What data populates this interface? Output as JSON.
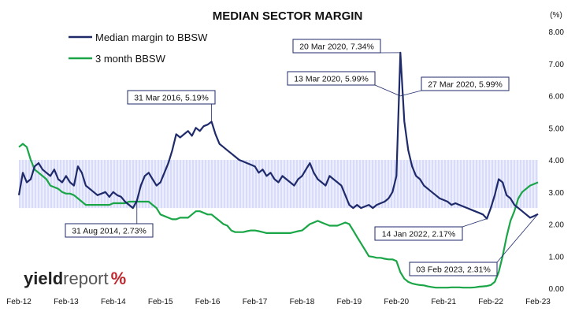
{
  "chart_data": {
    "type": "line",
    "title": "MEDIAN SECTOR MARGIN",
    "y_unit_label": "(%)",
    "ylim": [
      0,
      8
    ],
    "y_ticks": [
      "0.00",
      "1.00",
      "2.00",
      "3.00",
      "4.00",
      "5.00",
      "6.00",
      "7.00",
      "8.00"
    ],
    "x_ticks": [
      "Feb-12",
      "Feb-13",
      "Feb-14",
      "Feb-15",
      "Feb-16",
      "Feb-17",
      "Feb-18",
      "Feb-19",
      "Feb-20",
      "Feb-21",
      "Feb-22",
      "Feb-23"
    ],
    "x_range": [
      "2012-02",
      "2023-02"
    ],
    "grid": false,
    "legend_position": "top-left",
    "shaded_band": {
      "y_from": 2.5,
      "y_to": 4.0,
      "x_from": "2012-02",
      "x_to": "2023-02"
    },
    "series": [
      {
        "name": "Median margin to BBSW",
        "color": "#1f2a6b",
        "points": [
          [
            "2012-02",
            2.9
          ],
          [
            "2012-03",
            3.6
          ],
          [
            "2012-04",
            3.3
          ],
          [
            "2012-05",
            3.4
          ],
          [
            "2012-06",
            3.8
          ],
          [
            "2012-07",
            3.9
          ],
          [
            "2012-08",
            3.7
          ],
          [
            "2012-09",
            3.6
          ],
          [
            "2012-10",
            3.5
          ],
          [
            "2012-11",
            3.7
          ],
          [
            "2012-12",
            3.4
          ],
          [
            "2013-01",
            3.3
          ],
          [
            "2013-02",
            3.5
          ],
          [
            "2013-03",
            3.3
          ],
          [
            "2013-04",
            3.2
          ],
          [
            "2013-05",
            3.8
          ],
          [
            "2013-06",
            3.6
          ],
          [
            "2013-07",
            3.2
          ],
          [
            "2013-08",
            3.1
          ],
          [
            "2013-09",
            3.0
          ],
          [
            "2013-10",
            2.9
          ],
          [
            "2013-11",
            2.95
          ],
          [
            "2013-12",
            3.0
          ],
          [
            "2014-01",
            2.85
          ],
          [
            "2014-02",
            3.0
          ],
          [
            "2014-03",
            2.9
          ],
          [
            "2014-04",
            2.85
          ],
          [
            "2014-05",
            2.7
          ],
          [
            "2014-06",
            2.6
          ],
          [
            "2014-07",
            2.5
          ],
          [
            "2014-08",
            2.73
          ],
          [
            "2014-09",
            3.2
          ],
          [
            "2014-10",
            3.5
          ],
          [
            "2014-11",
            3.6
          ],
          [
            "2014-12",
            3.4
          ],
          [
            "2015-01",
            3.2
          ],
          [
            "2015-02",
            3.3
          ],
          [
            "2015-03",
            3.6
          ],
          [
            "2015-04",
            3.9
          ],
          [
            "2015-05",
            4.3
          ],
          [
            "2015-06",
            4.8
          ],
          [
            "2015-07",
            4.7
          ],
          [
            "2015-08",
            4.8
          ],
          [
            "2015-09",
            4.9
          ],
          [
            "2015-10",
            4.75
          ],
          [
            "2015-11",
            5.0
          ],
          [
            "2015-12",
            4.9
          ],
          [
            "2016-01",
            5.05
          ],
          [
            "2016-02",
            5.1
          ],
          [
            "2016-03",
            5.19
          ],
          [
            "2016-04",
            4.8
          ],
          [
            "2016-05",
            4.5
          ],
          [
            "2016-06",
            4.4
          ],
          [
            "2016-07",
            4.3
          ],
          [
            "2016-08",
            4.2
          ],
          [
            "2016-09",
            4.1
          ],
          [
            "2016-10",
            4.0
          ],
          [
            "2016-11",
            3.95
          ],
          [
            "2016-12",
            3.9
          ],
          [
            "2017-01",
            3.85
          ],
          [
            "2017-02",
            3.8
          ],
          [
            "2017-03",
            3.6
          ],
          [
            "2017-04",
            3.7
          ],
          [
            "2017-05",
            3.5
          ],
          [
            "2017-06",
            3.6
          ],
          [
            "2017-07",
            3.4
          ],
          [
            "2017-08",
            3.3
          ],
          [
            "2017-09",
            3.5
          ],
          [
            "2017-10",
            3.4
          ],
          [
            "2017-11",
            3.3
          ],
          [
            "2017-12",
            3.2
          ],
          [
            "2018-01",
            3.4
          ],
          [
            "2018-02",
            3.5
          ],
          [
            "2018-03",
            3.7
          ],
          [
            "2018-04",
            3.9
          ],
          [
            "2018-05",
            3.6
          ],
          [
            "2018-06",
            3.4
          ],
          [
            "2018-07",
            3.3
          ],
          [
            "2018-08",
            3.2
          ],
          [
            "2018-09",
            3.5
          ],
          [
            "2018-10",
            3.4
          ],
          [
            "2018-11",
            3.3
          ],
          [
            "2018-12",
            3.2
          ],
          [
            "2019-01",
            2.9
          ],
          [
            "2019-02",
            2.6
          ],
          [
            "2019-03",
            2.5
          ],
          [
            "2019-04",
            2.6
          ],
          [
            "2019-05",
            2.5
          ],
          [
            "2019-06",
            2.55
          ],
          [
            "2019-07",
            2.6
          ],
          [
            "2019-08",
            2.5
          ],
          [
            "2019-09",
            2.6
          ],
          [
            "2019-10",
            2.65
          ],
          [
            "2019-11",
            2.7
          ],
          [
            "2019-12",
            2.8
          ],
          [
            "2020-01",
            3.0
          ],
          [
            "2020-02",
            3.5
          ],
          [
            "2020-03",
            7.34
          ],
          [
            "2020-04",
            5.2
          ],
          [
            "2020-05",
            4.3
          ],
          [
            "2020-06",
            3.8
          ],
          [
            "2020-07",
            3.5
          ],
          [
            "2020-08",
            3.4
          ],
          [
            "2020-09",
            3.2
          ],
          [
            "2020-10",
            3.1
          ],
          [
            "2020-11",
            3.0
          ],
          [
            "2020-12",
            2.9
          ],
          [
            "2021-01",
            2.8
          ],
          [
            "2021-02",
            2.75
          ],
          [
            "2021-03",
            2.7
          ],
          [
            "2021-04",
            2.6
          ],
          [
            "2021-05",
            2.65
          ],
          [
            "2021-06",
            2.6
          ],
          [
            "2021-07",
            2.55
          ],
          [
            "2021-08",
            2.5
          ],
          [
            "2021-09",
            2.45
          ],
          [
            "2021-10",
            2.4
          ],
          [
            "2021-11",
            2.35
          ],
          [
            "2021-12",
            2.3
          ],
          [
            "2022-01",
            2.17
          ],
          [
            "2022-02",
            2.5
          ],
          [
            "2022-03",
            2.9
          ],
          [
            "2022-04",
            3.4
          ],
          [
            "2022-05",
            3.3
          ],
          [
            "2022-06",
            2.9
          ],
          [
            "2022-07",
            2.8
          ],
          [
            "2022-08",
            2.6
          ],
          [
            "2022-09",
            2.5
          ],
          [
            "2022-10",
            2.4
          ],
          [
            "2022-11",
            2.3
          ],
          [
            "2022-12",
            2.2
          ],
          [
            "2023-01",
            2.25
          ],
          [
            "2023-02",
            2.31
          ]
        ]
      },
      {
        "name": "3 month BBSW",
        "color": "#1aa547",
        "points": [
          [
            "2012-02",
            4.4
          ],
          [
            "2012-03",
            4.5
          ],
          [
            "2012-04",
            4.4
          ],
          [
            "2012-05",
            4.0
          ],
          [
            "2012-06",
            3.7
          ],
          [
            "2012-07",
            3.6
          ],
          [
            "2012-08",
            3.5
          ],
          [
            "2012-09",
            3.4
          ],
          [
            "2012-10",
            3.2
          ],
          [
            "2012-11",
            3.15
          ],
          [
            "2012-12",
            3.1
          ],
          [
            "2013-01",
            3.0
          ],
          [
            "2013-02",
            2.95
          ],
          [
            "2013-03",
            2.95
          ],
          [
            "2013-04",
            2.9
          ],
          [
            "2013-05",
            2.8
          ],
          [
            "2013-06",
            2.7
          ],
          [
            "2013-07",
            2.6
          ],
          [
            "2013-08",
            2.6
          ],
          [
            "2013-09",
            2.6
          ],
          [
            "2013-10",
            2.6
          ],
          [
            "2013-11",
            2.6
          ],
          [
            "2013-12",
            2.6
          ],
          [
            "2014-01",
            2.6
          ],
          [
            "2014-02",
            2.65
          ],
          [
            "2014-03",
            2.65
          ],
          [
            "2014-04",
            2.65
          ],
          [
            "2014-05",
            2.65
          ],
          [
            "2014-06",
            2.7
          ],
          [
            "2014-07",
            2.7
          ],
          [
            "2014-08",
            2.7
          ],
          [
            "2014-09",
            2.7
          ],
          [
            "2014-10",
            2.7
          ],
          [
            "2014-11",
            2.7
          ],
          [
            "2014-12",
            2.6
          ],
          [
            "2015-01",
            2.5
          ],
          [
            "2015-02",
            2.3
          ],
          [
            "2015-03",
            2.25
          ],
          [
            "2015-04",
            2.2
          ],
          [
            "2015-05",
            2.15
          ],
          [
            "2015-06",
            2.15
          ],
          [
            "2015-07",
            2.2
          ],
          [
            "2015-08",
            2.2
          ],
          [
            "2015-09",
            2.2
          ],
          [
            "2015-10",
            2.3
          ],
          [
            "2015-11",
            2.4
          ],
          [
            "2015-12",
            2.4
          ],
          [
            "2016-01",
            2.35
          ],
          [
            "2016-02",
            2.3
          ],
          [
            "2016-03",
            2.3
          ],
          [
            "2016-04",
            2.2
          ],
          [
            "2016-05",
            2.1
          ],
          [
            "2016-06",
            2.0
          ],
          [
            "2016-07",
            1.95
          ],
          [
            "2016-08",
            1.8
          ],
          [
            "2016-09",
            1.75
          ],
          [
            "2016-10",
            1.75
          ],
          [
            "2016-11",
            1.75
          ],
          [
            "2016-12",
            1.78
          ],
          [
            "2017-01",
            1.8
          ],
          [
            "2017-02",
            1.8
          ],
          [
            "2017-03",
            1.78
          ],
          [
            "2017-04",
            1.75
          ],
          [
            "2017-05",
            1.72
          ],
          [
            "2017-06",
            1.72
          ],
          [
            "2017-07",
            1.72
          ],
          [
            "2017-08",
            1.72
          ],
          [
            "2017-09",
            1.72
          ],
          [
            "2017-10",
            1.72
          ],
          [
            "2017-11",
            1.72
          ],
          [
            "2017-12",
            1.75
          ],
          [
            "2018-01",
            1.78
          ],
          [
            "2018-02",
            1.8
          ],
          [
            "2018-03",
            1.9
          ],
          [
            "2018-04",
            2.0
          ],
          [
            "2018-05",
            2.05
          ],
          [
            "2018-06",
            2.1
          ],
          [
            "2018-07",
            2.05
          ],
          [
            "2018-08",
            2.0
          ],
          [
            "2018-09",
            1.95
          ],
          [
            "2018-10",
            1.95
          ],
          [
            "2018-11",
            1.95
          ],
          [
            "2018-12",
            2.0
          ],
          [
            "2019-01",
            2.05
          ],
          [
            "2019-02",
            2.0
          ],
          [
            "2019-03",
            1.8
          ],
          [
            "2019-04",
            1.6
          ],
          [
            "2019-05",
            1.4
          ],
          [
            "2019-06",
            1.2
          ],
          [
            "2019-07",
            1.0
          ],
          [
            "2019-08",
            0.98
          ],
          [
            "2019-09",
            0.95
          ],
          [
            "2019-10",
            0.95
          ],
          [
            "2019-11",
            0.92
          ],
          [
            "2019-12",
            0.9
          ],
          [
            "2020-01",
            0.9
          ],
          [
            "2020-02",
            0.85
          ],
          [
            "2020-03",
            0.5
          ],
          [
            "2020-04",
            0.3
          ],
          [
            "2020-05",
            0.2
          ],
          [
            "2020-06",
            0.15
          ],
          [
            "2020-07",
            0.12
          ],
          [
            "2020-08",
            0.1
          ],
          [
            "2020-09",
            0.09
          ],
          [
            "2020-10",
            0.06
          ],
          [
            "2020-11",
            0.04
          ],
          [
            "2020-12",
            0.02
          ],
          [
            "2021-01",
            0.02
          ],
          [
            "2021-02",
            0.02
          ],
          [
            "2021-03",
            0.02
          ],
          [
            "2021-04",
            0.03
          ],
          [
            "2021-05",
            0.03
          ],
          [
            "2021-06",
            0.03
          ],
          [
            "2021-07",
            0.02
          ],
          [
            "2021-08",
            0.02
          ],
          [
            "2021-09",
            0.02
          ],
          [
            "2021-10",
            0.03
          ],
          [
            "2021-11",
            0.05
          ],
          [
            "2021-12",
            0.06
          ],
          [
            "2022-01",
            0.07
          ],
          [
            "2022-02",
            0.1
          ],
          [
            "2022-03",
            0.2
          ],
          [
            "2022-04",
            0.5
          ],
          [
            "2022-05",
            1.0
          ],
          [
            "2022-06",
            1.6
          ],
          [
            "2022-07",
            2.1
          ],
          [
            "2022-08",
            2.4
          ],
          [
            "2022-09",
            2.8
          ],
          [
            "2022-10",
            3.0
          ],
          [
            "2022-11",
            3.1
          ],
          [
            "2022-12",
            3.2
          ],
          [
            "2023-01",
            3.25
          ],
          [
            "2023-02",
            3.3
          ]
        ]
      }
    ],
    "annotations": [
      {
        "label": "31 Aug 2014,  2.73%",
        "x": "2014-08",
        "y": 2.73
      },
      {
        "label": "31 Mar 2016,  5.19%",
        "x": "2016-03",
        "y": 5.19
      },
      {
        "label": "20 Mar 2020,  7.34%",
        "x": "2020-03",
        "y": 7.34
      },
      {
        "label": "13 Mar 2020,  5.99%",
        "x": "2020-03",
        "y": 5.99
      },
      {
        "label": "27 Mar 2020,  5.99%",
        "x": "2020-03",
        "y": 5.99
      },
      {
        "label": "14 Jan 2022,  2.17%",
        "x": "2022-01",
        "y": 2.17
      },
      {
        "label": "03 Feb 2023,  2.31%",
        "x": "2023-02",
        "y": 2.31
      }
    ]
  },
  "logo": {
    "part1": "yield",
    "part2": "report",
    "mark": "%"
  }
}
